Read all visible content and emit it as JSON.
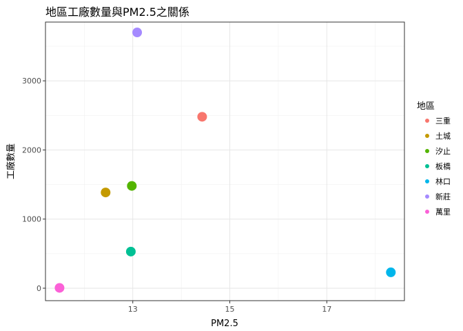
{
  "chart_data": {
    "type": "scatter",
    "title": "地區工廠數量與PM2.5之關係",
    "xlabel": "PM2.5",
    "ylabel": "工廠數量",
    "xlim": [
      11.2,
      18.6
    ],
    "ylim": [
      -180,
      3850
    ],
    "x_ticks": [
      13,
      15,
      17
    ],
    "x_minor_ticks": [
      12,
      14,
      16,
      18
    ],
    "y_ticks": [
      0,
      1000,
      2000,
      3000
    ],
    "y_minor_ticks": [
      500,
      1500,
      2500,
      3500
    ],
    "grid": true,
    "legend": {
      "title": "地區",
      "position": "right"
    },
    "series": [
      {
        "name": "三重",
        "color": "#F8766D",
        "x": 14.43,
        "y": 2480
      },
      {
        "name": "土城",
        "color": "#C49A00",
        "x": 12.44,
        "y": 1385
      },
      {
        "name": "汐止",
        "color": "#53B400",
        "x": 12.98,
        "y": 1480
      },
      {
        "name": "板橋",
        "color": "#00C094",
        "x": 12.96,
        "y": 530
      },
      {
        "name": "林口",
        "color": "#00B6EB",
        "x": 18.32,
        "y": 230
      },
      {
        "name": "新莊",
        "color": "#A58AFF",
        "x": 13.09,
        "y": 3700
      },
      {
        "name": "萬里",
        "color": "#FB61D7",
        "x": 11.49,
        "y": 5
      }
    ]
  }
}
